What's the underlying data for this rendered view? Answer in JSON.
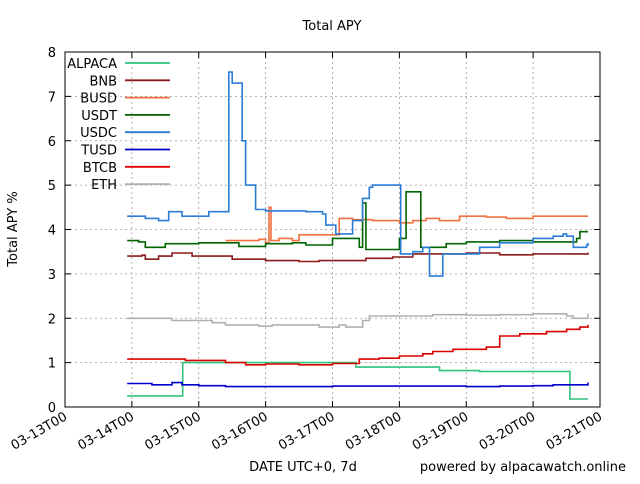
{
  "chart_data": {
    "type": "line",
    "title": "Total APY",
    "xlabel": "DATE UTC+0, 7d",
    "ylabel": "Total APY %",
    "credit": "powered by alpacawatch.online",
    "xlim": [
      0,
      8
    ],
    "ylim": [
      0,
      8
    ],
    "x_ticks": [
      "03-13T00",
      "03-14T00",
      "03-15T00",
      "03-16T00",
      "03-17T00",
      "03-18T00",
      "03-19T00",
      "03-20T00",
      "03-21T00"
    ],
    "y_ticks": [
      0,
      1,
      2,
      3,
      4,
      5,
      6,
      7,
      8
    ],
    "grid": true,
    "legend_position": "top-left",
    "x_unit": "days since 03-13T00",
    "series": [
      {
        "name": "ALPACA",
        "color": "#2ec27e",
        "points": [
          [
            0.93,
            0.25
          ],
          [
            1.4,
            0.25
          ],
          [
            1.75,
            0.25
          ],
          [
            1.76,
            1.0
          ],
          [
            2.2,
            1.0
          ],
          [
            3.0,
            1.0
          ],
          [
            3.9,
            1.0
          ],
          [
            4.35,
            0.9
          ],
          [
            5.2,
            0.9
          ],
          [
            5.6,
            0.82
          ],
          [
            6.2,
            0.8
          ],
          [
            7.5,
            0.8
          ],
          [
            7.55,
            0.18
          ],
          [
            7.82,
            0.18
          ]
        ]
      },
      {
        "name": "BNB",
        "color": "#8b1a1a",
        "points": [
          [
            0.93,
            3.4
          ],
          [
            1.15,
            3.42
          ],
          [
            1.2,
            3.33
          ],
          [
            1.4,
            3.4
          ],
          [
            1.6,
            3.47
          ],
          [
            1.9,
            3.4
          ],
          [
            2.5,
            3.33
          ],
          [
            3.0,
            3.3
          ],
          [
            3.5,
            3.28
          ],
          [
            3.8,
            3.3
          ],
          [
            4.2,
            3.3
          ],
          [
            4.5,
            3.35
          ],
          [
            4.9,
            3.38
          ],
          [
            5.2,
            3.45
          ],
          [
            5.6,
            3.45
          ],
          [
            6.0,
            3.47
          ],
          [
            6.5,
            3.43
          ],
          [
            7.0,
            3.45
          ],
          [
            7.5,
            3.45
          ],
          [
            7.82,
            3.48
          ]
        ]
      },
      {
        "name": "BUSD",
        "color": "#f07040",
        "points": [
          [
            2.4,
            3.75
          ],
          [
            2.9,
            3.78
          ],
          [
            3.0,
            3.7
          ],
          [
            3.05,
            4.5
          ],
          [
            3.08,
            3.75
          ],
          [
            3.2,
            3.8
          ],
          [
            3.4,
            3.75
          ],
          [
            3.5,
            3.88
          ],
          [
            3.9,
            3.88
          ],
          [
            4.1,
            4.25
          ],
          [
            4.3,
            4.22
          ],
          [
            4.6,
            4.2
          ],
          [
            5.0,
            4.15
          ],
          [
            5.2,
            4.2
          ],
          [
            5.4,
            4.25
          ],
          [
            5.6,
            4.2
          ],
          [
            5.9,
            4.3
          ],
          [
            6.3,
            4.28
          ],
          [
            6.6,
            4.25
          ],
          [
            7.0,
            4.3
          ],
          [
            7.5,
            4.3
          ],
          [
            7.82,
            4.3
          ]
        ]
      },
      {
        "name": "USDT",
        "color": "#006400",
        "points": [
          [
            0.93,
            3.75
          ],
          [
            1.1,
            3.72
          ],
          [
            1.2,
            3.6
          ],
          [
            1.5,
            3.68
          ],
          [
            2.0,
            3.7
          ],
          [
            2.6,
            3.62
          ],
          [
            3.0,
            3.68
          ],
          [
            3.4,
            3.7
          ],
          [
            3.6,
            3.65
          ],
          [
            3.95,
            3.65
          ],
          [
            4.0,
            3.8
          ],
          [
            4.4,
            3.6
          ],
          [
            4.45,
            4.6
          ],
          [
            4.5,
            3.55
          ],
          [
            4.9,
            3.55
          ],
          [
            5.0,
            3.8
          ],
          [
            5.1,
            4.85
          ],
          [
            5.3,
            4.85
          ],
          [
            5.32,
            3.6
          ],
          [
            5.7,
            3.68
          ],
          [
            6.0,
            3.72
          ],
          [
            6.5,
            3.75
          ],
          [
            6.7,
            3.75
          ],
          [
            7.0,
            3.72
          ],
          [
            7.5,
            3.72
          ],
          [
            7.65,
            3.8
          ],
          [
            7.7,
            3.95
          ],
          [
            7.82,
            3.95
          ]
        ]
      },
      {
        "name": "USDC",
        "color": "#2a7cd6",
        "points": [
          [
            0.93,
            4.3
          ],
          [
            1.2,
            4.25
          ],
          [
            1.4,
            4.2
          ],
          [
            1.55,
            4.4
          ],
          [
            1.75,
            4.3
          ],
          [
            1.9,
            4.3
          ],
          [
            2.15,
            4.4
          ],
          [
            2.35,
            4.4
          ],
          [
            2.45,
            7.55
          ],
          [
            2.5,
            7.3
          ],
          [
            2.6,
            7.3
          ],
          [
            2.65,
            6.0
          ],
          [
            2.7,
            5.0
          ],
          [
            2.8,
            5.0
          ],
          [
            2.85,
            4.45
          ],
          [
            3.0,
            4.42
          ],
          [
            3.3,
            4.42
          ],
          [
            3.6,
            4.4
          ],
          [
            3.85,
            4.35
          ],
          [
            3.9,
            4.1
          ],
          [
            4.0,
            4.1
          ],
          [
            4.05,
            3.9
          ],
          [
            4.2,
            3.9
          ],
          [
            4.3,
            4.2
          ],
          [
            4.45,
            4.7
          ],
          [
            4.55,
            4.95
          ],
          [
            4.6,
            5.0
          ],
          [
            5.0,
            5.0
          ],
          [
            5.02,
            3.45
          ],
          [
            5.2,
            3.5
          ],
          [
            5.35,
            3.6
          ],
          [
            5.45,
            2.95
          ],
          [
            5.6,
            2.95
          ],
          [
            5.65,
            3.45
          ],
          [
            6.0,
            3.45
          ],
          [
            6.2,
            3.6
          ],
          [
            6.5,
            3.7
          ],
          [
            7.0,
            3.8
          ],
          [
            7.3,
            3.85
          ],
          [
            7.45,
            3.9
          ],
          [
            7.5,
            3.85
          ],
          [
            7.6,
            3.6
          ],
          [
            7.8,
            3.65
          ],
          [
            7.82,
            3.7
          ]
        ]
      },
      {
        "name": "TUSD",
        "color": "#0000cc",
        "points": [
          [
            0.93,
            0.53
          ],
          [
            1.3,
            0.5
          ],
          [
            1.6,
            0.55
          ],
          [
            1.75,
            0.5
          ],
          [
            2.0,
            0.48
          ],
          [
            2.4,
            0.46
          ],
          [
            3.0,
            0.46
          ],
          [
            4.0,
            0.47
          ],
          [
            5.0,
            0.47
          ],
          [
            5.5,
            0.47
          ],
          [
            6.0,
            0.46
          ],
          [
            6.5,
            0.47
          ],
          [
            7.0,
            0.48
          ],
          [
            7.3,
            0.5
          ],
          [
            7.82,
            0.55
          ]
        ]
      },
      {
        "name": "BTCB",
        "color": "#dd0000",
        "points": [
          [
            0.93,
            1.08
          ],
          [
            1.5,
            1.08
          ],
          [
            1.8,
            1.05
          ],
          [
            2.0,
            1.05
          ],
          [
            2.4,
            1.0
          ],
          [
            2.7,
            0.95
          ],
          [
            3.0,
            0.97
          ],
          [
            3.5,
            0.95
          ],
          [
            3.9,
            0.95
          ],
          [
            4.0,
            0.98
          ],
          [
            4.4,
            1.08
          ],
          [
            4.7,
            1.1
          ],
          [
            5.0,
            1.15
          ],
          [
            5.35,
            1.2
          ],
          [
            5.5,
            1.25
          ],
          [
            5.8,
            1.3
          ],
          [
            6.3,
            1.35
          ],
          [
            6.5,
            1.6
          ],
          [
            6.8,
            1.65
          ],
          [
            7.2,
            1.7
          ],
          [
            7.5,
            1.75
          ],
          [
            7.7,
            1.8
          ],
          [
            7.82,
            1.85
          ]
        ]
      },
      {
        "name": "ETH",
        "color": "#b0b0b0",
        "points": [
          [
            0.93,
            2.0
          ],
          [
            1.3,
            2.0
          ],
          [
            1.6,
            1.95
          ],
          [
            1.9,
            1.95
          ],
          [
            2.2,
            1.9
          ],
          [
            2.4,
            1.85
          ],
          [
            2.9,
            1.82
          ],
          [
            3.1,
            1.85
          ],
          [
            3.5,
            1.85
          ],
          [
            3.8,
            1.8
          ],
          [
            4.1,
            1.85
          ],
          [
            4.2,
            1.8
          ],
          [
            4.45,
            1.95
          ],
          [
            4.55,
            2.05
          ],
          [
            5.0,
            2.05
          ],
          [
            5.5,
            2.08
          ],
          [
            6.0,
            2.07
          ],
          [
            6.5,
            2.08
          ],
          [
            7.0,
            2.1
          ],
          [
            7.5,
            2.05
          ],
          [
            7.6,
            2.0
          ],
          [
            7.8,
            2.0
          ],
          [
            7.82,
            2.1
          ]
        ]
      }
    ]
  }
}
